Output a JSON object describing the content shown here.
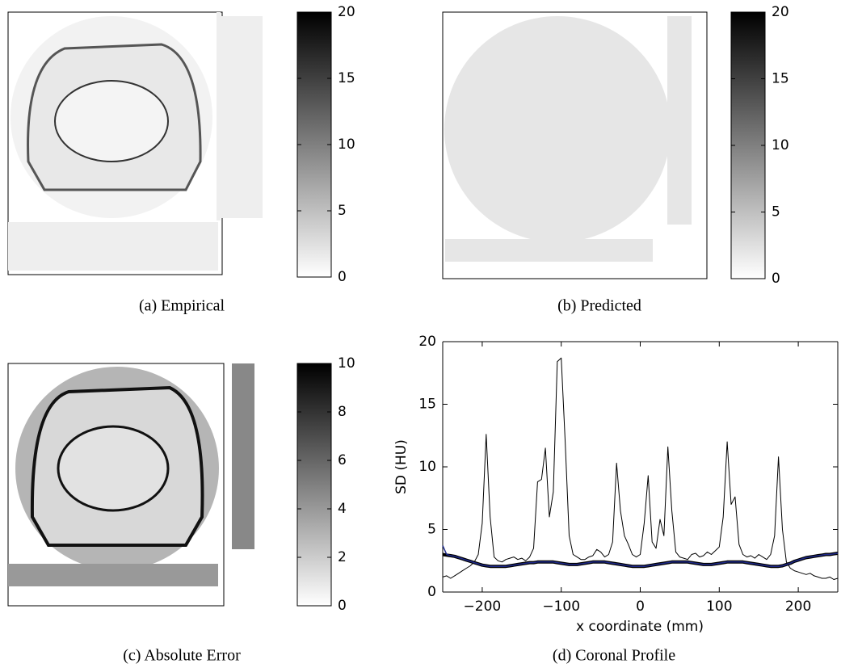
{
  "figures": [
    {
      "caption": "(a) Empirical",
      "colorbar": {
        "lim": [
          0,
          20
        ],
        "ticks": [
          0,
          5,
          10,
          15,
          20
        ]
      }
    },
    {
      "caption": "(b) Predicted",
      "colorbar": {
        "lim": [
          0,
          20
        ],
        "ticks": [
          0,
          5,
          10,
          15,
          20
        ]
      }
    },
    {
      "caption": "(c) Absolute Error",
      "colorbar": {
        "lim": [
          0,
          10
        ],
        "ticks": [
          0,
          2,
          4,
          6,
          8,
          10
        ]
      }
    }
  ],
  "chart_data": {
    "type": "line",
    "caption": "(d) Coronal Profile",
    "xlabel": "x coordinate (mm)",
    "ylabel": "SD (HU)",
    "xlim": [
      -250,
      250
    ],
    "ylim": [
      0,
      20
    ],
    "xticks": [
      {
        "value": -200,
        "label": "−200"
      },
      {
        "value": -100,
        "label": "−100"
      },
      0,
      100,
      200
    ],
    "yticks": [
      0,
      5,
      10,
      15,
      20
    ],
    "x": [
      -250,
      -245,
      -240,
      -235,
      -230,
      -225,
      -220,
      -215,
      -210,
      -205,
      -200,
      -195,
      -190,
      -185,
      -180,
      -175,
      -170,
      -165,
      -160,
      -155,
      -150,
      -145,
      -140,
      -135,
      -130,
      -125,
      -120,
      -115,
      -110,
      -105,
      -100,
      -95,
      -90,
      -85,
      -80,
      -75,
      -70,
      -65,
      -60,
      -55,
      -50,
      -45,
      -40,
      -35,
      -30,
      -25,
      -20,
      -15,
      -10,
      -5,
      0,
      5,
      10,
      15,
      20,
      25,
      30,
      35,
      40,
      45,
      50,
      55,
      60,
      65,
      70,
      75,
      80,
      85,
      90,
      95,
      100,
      105,
      110,
      115,
      120,
      125,
      130,
      135,
      140,
      145,
      150,
      155,
      160,
      165,
      170,
      175,
      180,
      185,
      190,
      195,
      200,
      205,
      210,
      215,
      220,
      225,
      230,
      235,
      240,
      245,
      250
    ],
    "series": [
      {
        "color": "#000000",
        "width": 1,
        "values": [
          1.2,
          1.3,
          1.1,
          1.3,
          1.5,
          1.7,
          1.9,
          2.1,
          2.4,
          3.0,
          5.5,
          12.6,
          6.0,
          2.8,
          2.5,
          2.4,
          2.6,
          2.7,
          2.8,
          2.6,
          2.7,
          2.5,
          2.8,
          3.5,
          8.8,
          9.0,
          11.5,
          6.0,
          8.0,
          18.4,
          18.7,
          12.0,
          4.5,
          3.0,
          2.8,
          2.6,
          2.6,
          2.8,
          2.9,
          3.4,
          3.2,
          2.8,
          3.0,
          4.0,
          10.3,
          6.5,
          4.5,
          3.8,
          3.0,
          2.8,
          3.0,
          5.5,
          9.3,
          4.0,
          3.5,
          5.8,
          4.5,
          11.6,
          6.5,
          3.2,
          2.8,
          2.7,
          2.6,
          3.0,
          3.1,
          2.8,
          2.9,
          3.2,
          3.0,
          3.3,
          3.6,
          6.0,
          12.0,
          7.0,
          7.6,
          3.8,
          3.0,
          2.8,
          2.9,
          2.7,
          3.0,
          2.8,
          2.6,
          3.0,
          4.5,
          10.8,
          5.0,
          2.4,
          1.9,
          1.7,
          1.6,
          1.5,
          1.4,
          1.5,
          1.3,
          1.2,
          1.1,
          1.1,
          1.2,
          1.0,
          1.1
        ]
      },
      {
        "color": "#000000",
        "width": 4,
        "values": [
          3.0,
          2.95,
          2.9,
          2.85,
          2.75,
          2.65,
          2.55,
          2.45,
          2.35,
          2.25,
          2.15,
          2.1,
          2.05,
          2.05,
          2.05,
          2.05,
          2.05,
          2.1,
          2.15,
          2.2,
          2.25,
          2.3,
          2.35,
          2.35,
          2.4,
          2.4,
          2.4,
          2.4,
          2.4,
          2.35,
          2.3,
          2.25,
          2.2,
          2.2,
          2.2,
          2.25,
          2.3,
          2.35,
          2.4,
          2.4,
          2.4,
          2.4,
          2.35,
          2.3,
          2.25,
          2.2,
          2.15,
          2.1,
          2.05,
          2.05,
          2.05,
          2.05,
          2.1,
          2.15,
          2.2,
          2.25,
          2.3,
          2.35,
          2.4,
          2.4,
          2.4,
          2.4,
          2.4,
          2.35,
          2.3,
          2.25,
          2.2,
          2.2,
          2.2,
          2.25,
          2.3,
          2.35,
          2.4,
          2.4,
          2.4,
          2.4,
          2.4,
          2.35,
          2.3,
          2.25,
          2.2,
          2.15,
          2.1,
          2.05,
          2.05,
          2.05,
          2.1,
          2.2,
          2.3,
          2.45,
          2.55,
          2.65,
          2.75,
          2.8,
          2.85,
          2.9,
          2.95,
          3.0,
          3.0,
          3.05,
          3.1
        ]
      },
      {
        "color": "#1f2a8c",
        "width": 1.5,
        "values": [
          3.7,
          3.0,
          2.9,
          2.85,
          2.75,
          2.65,
          2.55,
          2.45,
          2.35,
          2.25,
          2.15,
          2.1,
          2.05,
          2.05,
          2.05,
          2.05,
          2.05,
          2.1,
          2.15,
          2.2,
          2.25,
          2.3,
          2.35,
          2.35,
          2.4,
          2.4,
          2.4,
          2.4,
          2.4,
          2.35,
          2.3,
          2.25,
          2.2,
          2.2,
          2.2,
          2.25,
          2.3,
          2.35,
          2.4,
          2.4,
          2.4,
          2.4,
          2.35,
          2.3,
          2.25,
          2.2,
          2.15,
          2.1,
          2.05,
          2.05,
          2.05,
          2.05,
          2.1,
          2.15,
          2.2,
          2.25,
          2.3,
          2.35,
          2.4,
          2.4,
          2.4,
          2.4,
          2.4,
          2.35,
          2.3,
          2.25,
          2.2,
          2.2,
          2.2,
          2.25,
          2.3,
          2.35,
          2.4,
          2.4,
          2.4,
          2.4,
          2.4,
          2.35,
          2.3,
          2.25,
          2.2,
          2.15,
          2.1,
          2.05,
          2.05,
          2.05,
          2.1,
          2.2,
          2.3,
          2.45,
          2.55,
          2.65,
          2.75,
          2.8,
          2.85,
          2.9,
          2.95,
          3.0,
          3.0,
          3.05,
          3.1
        ]
      }
    ]
  }
}
